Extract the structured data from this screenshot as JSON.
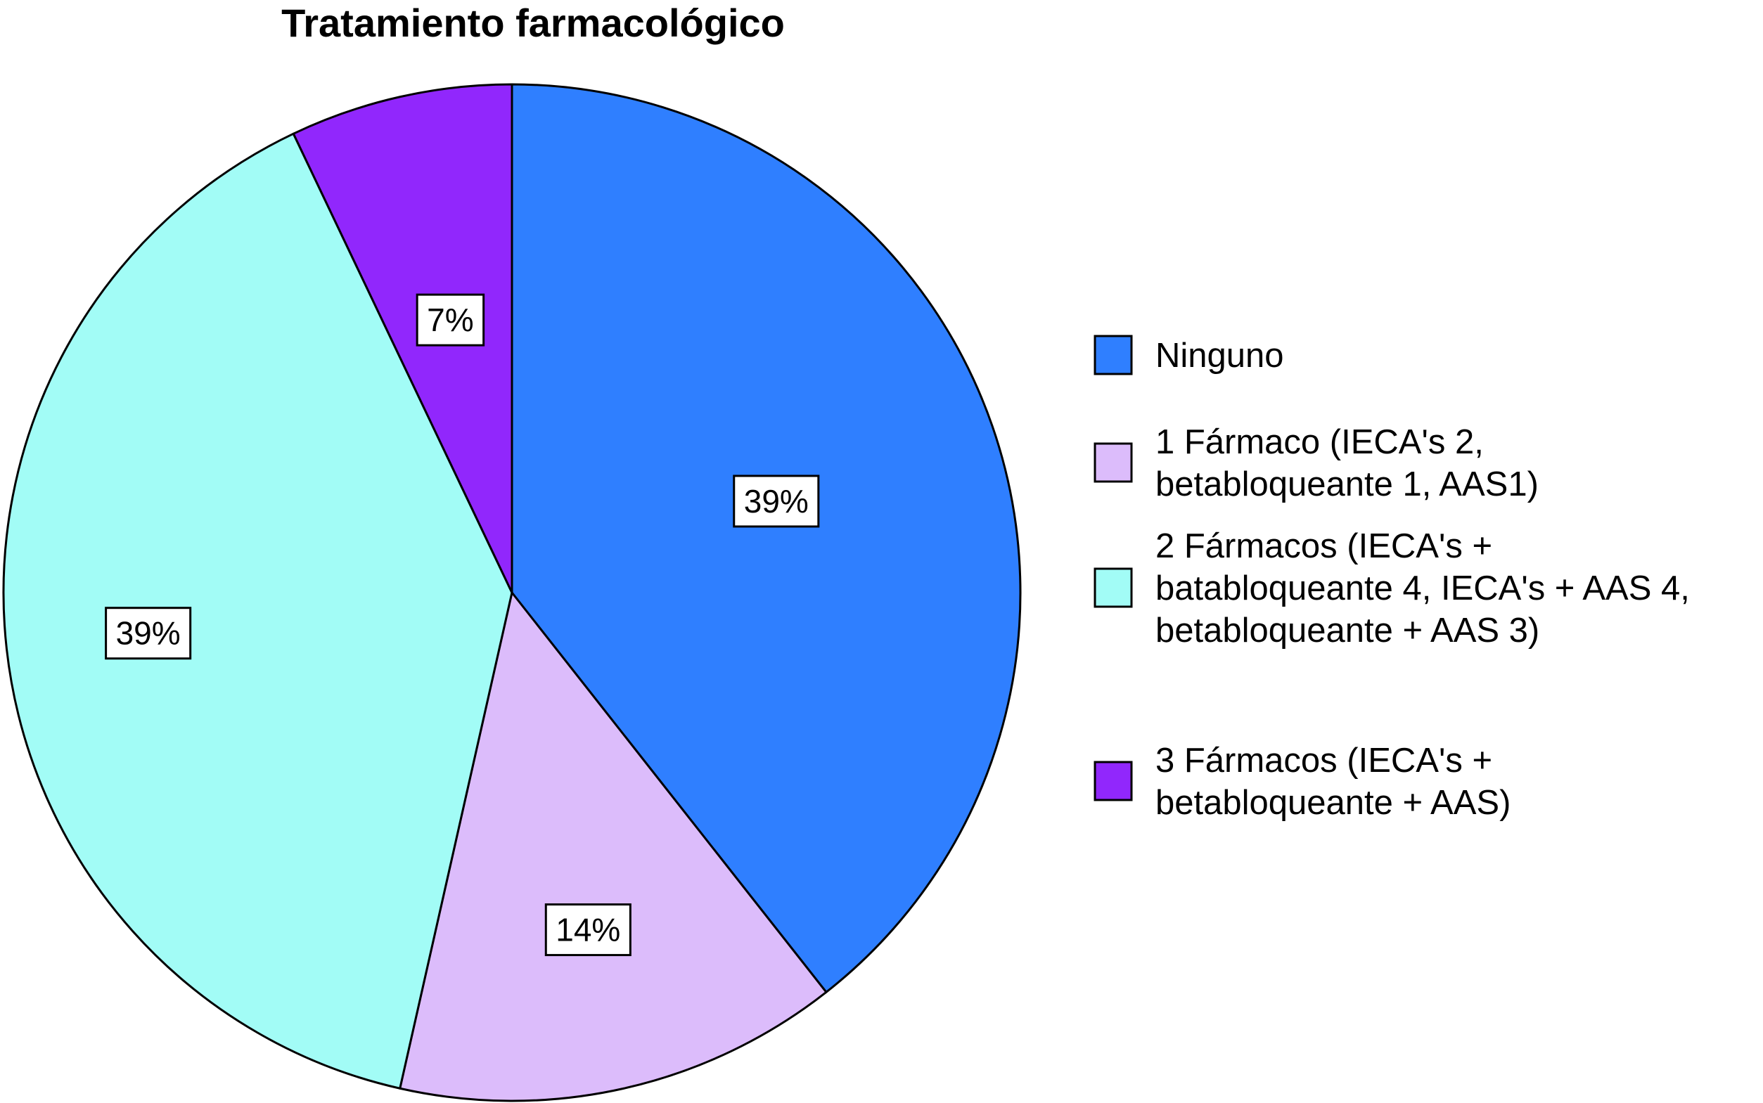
{
  "chart_data": {
    "type": "pie",
    "title": "Tratamiento farmacológico",
    "slices": [
      {
        "label": "Ninguno",
        "label_lines": [
          "Ninguno"
        ],
        "value": 39,
        "value_label": "39%",
        "color": "#2f7fff"
      },
      {
        "label": "1 Fármaco (IECA's 2, betabloqueante 1, AAS1)",
        "label_lines": [
          "1 Fármaco (IECA's 2,",
          "betabloqueante 1, AAS1)"
        ],
        "value": 14,
        "value_label": "14%",
        "color": "#dcbcfb"
      },
      {
        "label": "2 Fármacos (IECA's + batabloqueante 4, IECA's + AAS 4, betabloqueante + AAS 3)",
        "label_lines": [
          "2 Fármacos (IECA's +",
          "batabloqueante 4, IECA's + AAS 4,",
          "betabloqueante + AAS 3)"
        ],
        "value": 39,
        "value_label": "39%",
        "color": "#a2fcf6"
      },
      {
        "label": "3 Fármacos (IECA's + betabloqueante + AAS)",
        "label_lines": [
          "3 Fármacos (IECA's +",
          "betabloqueante + AAS)"
        ],
        "value": 7,
        "value_label": "7%",
        "color": "#9127fc"
      }
    ],
    "start_angle": "12 o'clock",
    "direction": "clockwise",
    "legend_position": "right"
  }
}
